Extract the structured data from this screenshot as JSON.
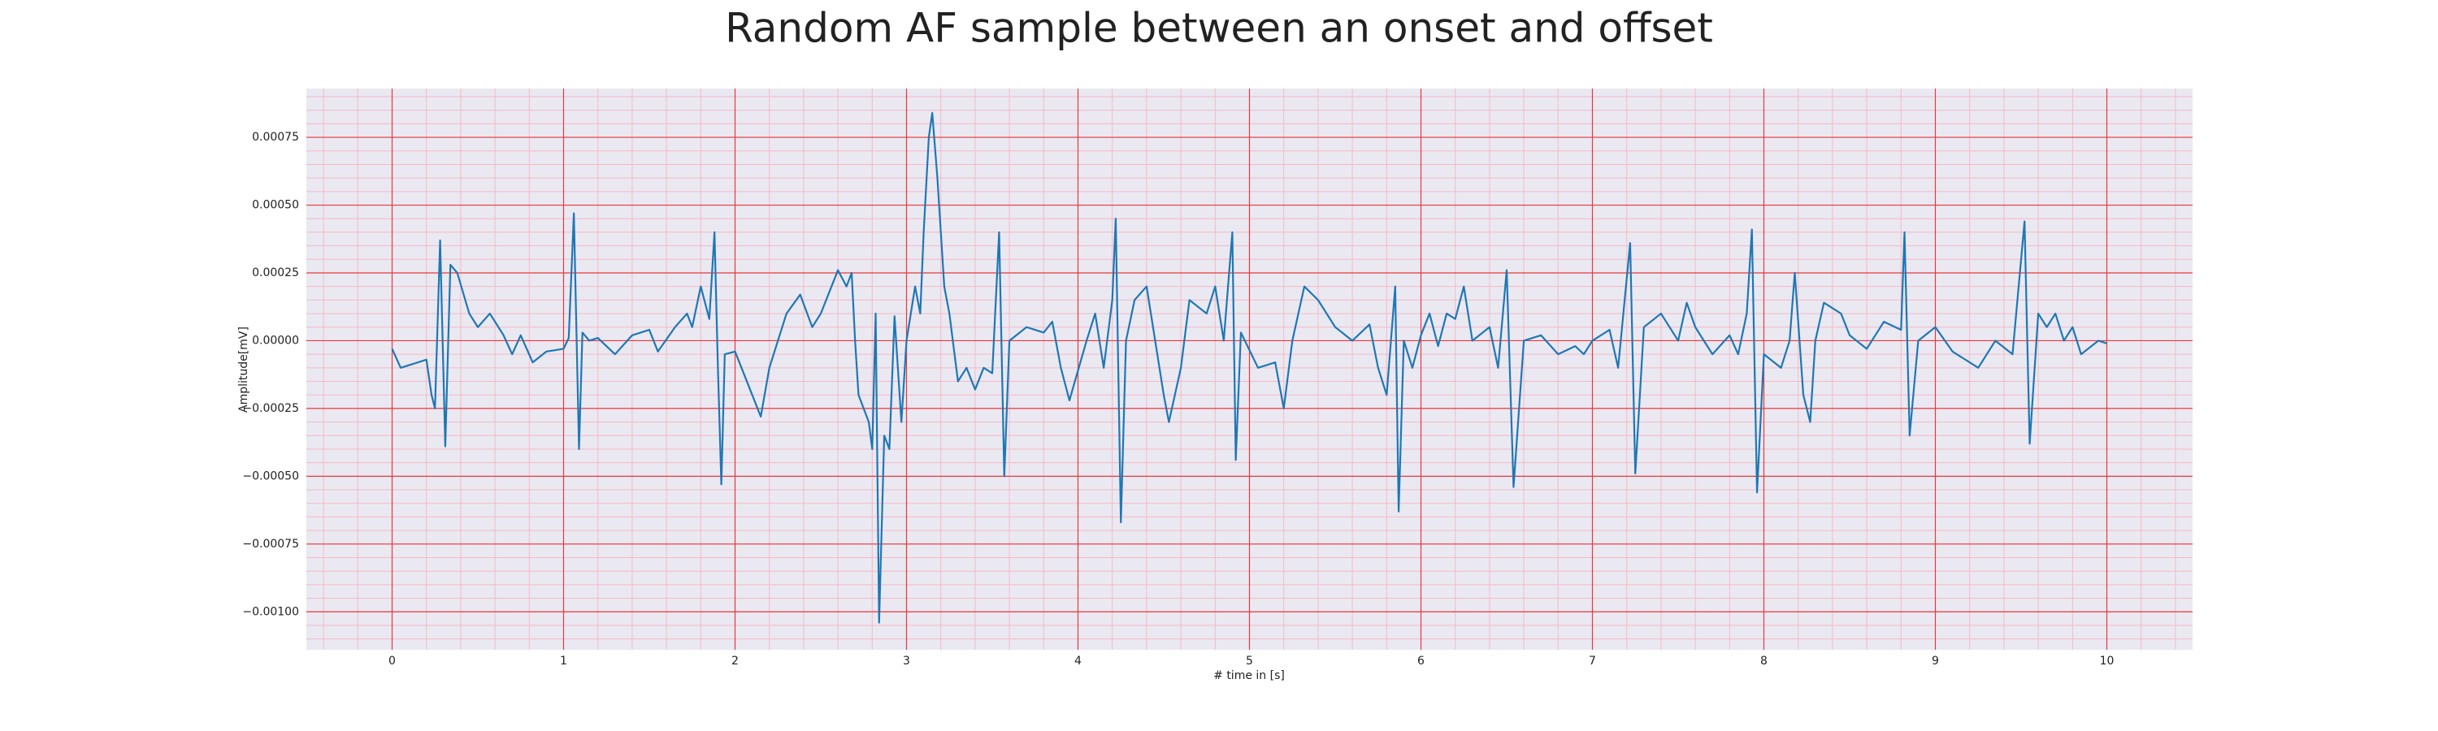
{
  "chart_data": {
    "type": "line",
    "title": "Random AF sample between an onset and offset",
    "xlabel": "# time in [s]",
    "ylabel": "Amplitude[mV]",
    "x": [
      0,
      0.05,
      0.2,
      0.23,
      0.25,
      0.28,
      0.31,
      0.34,
      0.38,
      0.45,
      0.5,
      0.57,
      0.65,
      0.7,
      0.75,
      0.82,
      0.9,
      1.0,
      1.03,
      1.06,
      1.09,
      1.11,
      1.15,
      1.2,
      1.3,
      1.4,
      1.5,
      1.55,
      1.65,
      1.72,
      1.75,
      1.8,
      1.85,
      1.88,
      1.9,
      1.92,
      1.94,
      2.0,
      2.1,
      2.15,
      2.2,
      2.3,
      2.38,
      2.45,
      2.5,
      2.6,
      2.65,
      2.68,
      2.7,
      2.72,
      2.78,
      2.8,
      2.82,
      2.84,
      2.87,
      2.9,
      2.93,
      2.97,
      3.0,
      3.05,
      3.08,
      3.1,
      3.13,
      3.15,
      3.18,
      3.22,
      3.25,
      3.3,
      3.35,
      3.4,
      3.45,
      3.5,
      3.54,
      3.57,
      3.6,
      3.7,
      3.8,
      3.85,
      3.9,
      3.95,
      4.05,
      4.1,
      4.15,
      4.2,
      4.22,
      4.25,
      4.28,
      4.33,
      4.4,
      4.45,
      4.5,
      4.53,
      4.6,
      4.65,
      4.75,
      4.8,
      4.85,
      4.9,
      4.92,
      4.95,
      5.05,
      5.15,
      5.2,
      5.25,
      5.32,
      5.4,
      5.5,
      5.6,
      5.7,
      5.75,
      5.8,
      5.85,
      5.87,
      5.9,
      5.95,
      6.0,
      6.05,
      6.1,
      6.15,
      6.2,
      6.25,
      6.3,
      6.4,
      6.45,
      6.5,
      6.54,
      6.6,
      6.7,
      6.8,
      6.9,
      6.95,
      7.0,
      7.1,
      7.15,
      7.22,
      7.25,
      7.3,
      7.4,
      7.5,
      7.55,
      7.6,
      7.7,
      7.8,
      7.85,
      7.9,
      7.93,
      7.96,
      8.0,
      8.1,
      8.15,
      8.18,
      8.23,
      8.27,
      8.3,
      8.35,
      8.45,
      8.5,
      8.6,
      8.7,
      8.8,
      8.82,
      8.85,
      8.9,
      9.0,
      9.1,
      9.25,
      9.35,
      9.45,
      9.52,
      9.55,
      9.6,
      9.65,
      9.7,
      9.75,
      9.8,
      9.85,
      9.95,
      10.0
    ],
    "series": [
      {
        "color": "#1f77b4",
        "values": [
          -3e-05,
          -0.0001,
          -7e-05,
          -0.0002,
          -0.00025,
          0.00037,
          -0.00039,
          0.00028,
          0.00025,
          0.0001,
          5e-05,
          0.0001,
          2e-05,
          -5e-05,
          2e-05,
          -8e-05,
          -4e-05,
          -3e-05,
          1e-05,
          0.00047,
          -0.0004,
          3e-05,
          0.0,
          1e-05,
          -5e-05,
          2e-05,
          4e-05,
          -4e-05,
          5e-05,
          0.0001,
          5e-05,
          0.0002,
          8e-05,
          0.0004,
          -0.0001,
          -0.00053,
          -5e-05,
          -4e-05,
          -0.0002,
          -0.00028,
          -0.0001,
          0.0001,
          0.00017,
          5e-05,
          0.0001,
          0.00026,
          0.0002,
          0.00025,
          0.0,
          -0.0002,
          -0.0003,
          -0.0004,
          0.0001,
          -0.00104,
          -0.00035,
          -0.0004,
          9e-05,
          -0.0003,
          0.0,
          0.0002,
          0.0001,
          0.0004,
          0.00075,
          0.00084,
          0.0006,
          0.0002,
          0.0001,
          -0.00015,
          -0.0001,
          -0.00018,
          -0.0001,
          -0.00012,
          0.0004,
          -0.0005,
          0.0,
          5e-05,
          3e-05,
          7e-05,
          -0.0001,
          -0.00022,
          0.0,
          0.0001,
          -0.0001,
          0.00015,
          0.00045,
          -0.00067,
          0.0,
          0.00015,
          0.0002,
          0.0,
          -0.0002,
          -0.0003,
          -0.0001,
          0.00015,
          0.0001,
          0.0002,
          0.0,
          0.0004,
          -0.00044,
          3e-05,
          -0.0001,
          -8e-05,
          -0.00025,
          0.0,
          0.0002,
          0.00015,
          5e-05,
          0.0,
          6e-05,
          -0.0001,
          -0.0002,
          0.0002,
          -0.00063,
          0.0,
          -0.0001,
          2e-05,
          0.0001,
          -2e-05,
          0.0001,
          8e-05,
          0.0002,
          0.0,
          5e-05,
          -0.0001,
          0.00026,
          -0.00054,
          0.0,
          2e-05,
          -5e-05,
          -2e-05,
          -5e-05,
          0.0,
          4e-05,
          -0.0001,
          0.00036,
          -0.00049,
          5e-05,
          0.0001,
          0.0,
          0.00014,
          5e-05,
          -5e-05,
          2e-05,
          -5e-05,
          0.0001,
          0.00041,
          -0.00056,
          -5e-05,
          -0.0001,
          0.0,
          0.00025,
          -0.0002,
          -0.0003,
          0.0,
          0.00014,
          0.0001,
          2e-05,
          -3e-05,
          7e-05,
          4e-05,
          0.0004,
          -0.00035,
          0.0,
          5e-05,
          -4e-05,
          -0.0001,
          0.0,
          -5e-05,
          0.00044,
          -0.00038,
          0.0001,
          5e-05,
          0.0001,
          0.0,
          5e-05,
          -5e-05,
          0.0,
          -1e-05
        ]
      }
    ],
    "xlim": [
      -0.5,
      10.5
    ],
    "ylim": [
      -0.00114,
      0.00093
    ],
    "xticks": [
      0,
      1,
      2,
      3,
      4,
      5,
      6,
      7,
      8,
      9,
      10
    ],
    "yticks": [
      {
        "value": -0.001,
        "label": "−0.00100"
      },
      {
        "value": -0.00075,
        "label": "−0.00075"
      },
      {
        "value": -0.0005,
        "label": "−0.00050"
      },
      {
        "value": -0.00025,
        "label": "−0.00025"
      },
      {
        "value": 0,
        "label": "0.00000"
      },
      {
        "value": 0.00025,
        "label": "0.00025"
      },
      {
        "value": 0.0005,
        "label": "0.00050"
      },
      {
        "value": 0.00075,
        "label": "0.00075"
      }
    ],
    "grid": true,
    "minor_grid": true,
    "grid_color": "#e8383d",
    "minor_grid_color": "#f4b8c4",
    "background": "#eae9f2"
  }
}
